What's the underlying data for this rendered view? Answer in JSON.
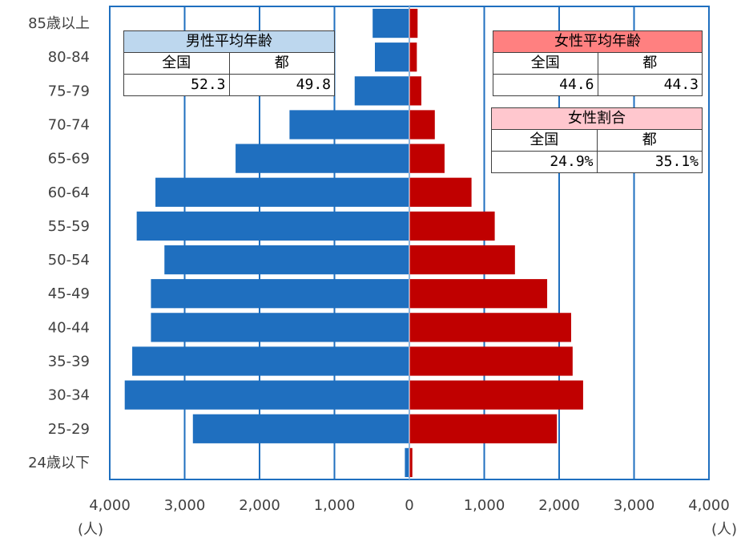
{
  "chart_data": {
    "type": "bar",
    "orientation": "horizontal-population-pyramid",
    "categories": [
      "85歳以上",
      "80-84",
      "75-79",
      "70-74",
      "65-69",
      "60-64",
      "55-59",
      "50-54",
      "45-49",
      "40-44",
      "35-39",
      "30-34",
      "25-29",
      "24歳以下"
    ],
    "series": [
      {
        "side": "left",
        "color": "#1f6fbf",
        "values": [
          490,
          460,
          730,
          1600,
          2320,
          3390,
          3640,
          3270,
          3450,
          3450,
          3700,
          3800,
          2890,
          60
        ]
      },
      {
        "side": "right",
        "color": "#c00000",
        "values": [
          110,
          100,
          160,
          340,
          470,
          830,
          1140,
          1410,
          1840,
          2160,
          2180,
          2320,
          1970,
          40
        ]
      }
    ],
    "x_ticks": [
      "4,000",
      "3,000",
      "2,000",
      "1,000",
      "0",
      "1,000",
      "2,000",
      "3,000",
      "4,000"
    ],
    "xlim": [
      -4000,
      4000
    ],
    "grid": true,
    "unit_left": "(人)",
    "unit_right": "(人)"
  },
  "tables": {
    "male_avg": {
      "title": "男性平均年齢",
      "col1": "全国",
      "col2": "都",
      "val1": "52.3",
      "val2": "49.8",
      "color": "#bdd7ee"
    },
    "female_avg": {
      "title": "女性平均年齢",
      "col1": "全国",
      "col2": "都",
      "val1": "44.6",
      "val2": "44.3",
      "color": "#ff8080"
    },
    "female_ratio": {
      "title": "女性割合",
      "col1": "全国",
      "col2": "都",
      "val1": "24.9%",
      "val2": "35.1%",
      "color": "#ffc7ce"
    }
  }
}
